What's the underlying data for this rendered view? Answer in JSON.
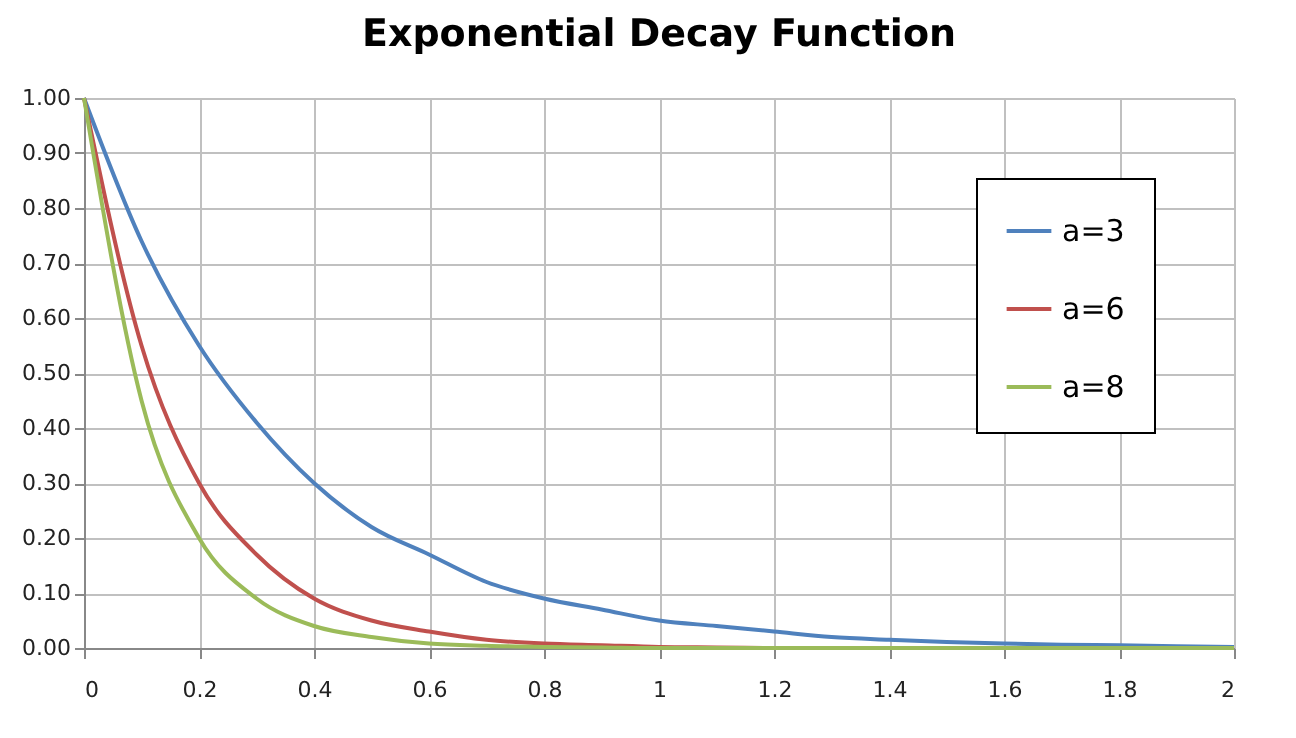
{
  "chart_data": {
    "type": "line",
    "title": "Exponential Decay Function",
    "x": [
      0,
      0.1,
      0.2,
      0.3,
      0.4,
      0.5,
      0.6,
      0.7,
      0.8,
      0.9,
      1,
      1.1,
      1.2,
      1.3,
      1.4,
      1.5,
      1.6,
      1.7,
      1.8,
      1.9,
      2
    ],
    "series": [
      {
        "name": "a=3",
        "color": "#4f81bd",
        "values": [
          1,
          0.74,
          0.55,
          0.41,
          0.3,
          0.22,
          0.17,
          0.12,
          0.09,
          0.07,
          0.05,
          0.04,
          0.03,
          0.02,
          0.015,
          0.011,
          0.008,
          0.006,
          0.005,
          0.003,
          0.002
        ]
      },
      {
        "name": "a=6",
        "color": "#c0504d",
        "values": [
          1,
          0.55,
          0.3,
          0.17,
          0.09,
          0.05,
          0.03,
          0.015,
          0.008,
          0.005,
          0.002,
          0.001,
          0,
          null,
          null,
          null,
          null,
          null,
          null,
          null,
          null
        ]
      },
      {
        "name": "a=8",
        "color": "#9bbb59",
        "values": [
          1,
          0.45,
          0.2,
          0.09,
          0.04,
          0.02,
          0.008,
          0.004,
          0.002,
          0.001,
          0,
          0,
          0,
          0,
          0,
          0,
          0,
          0,
          0,
          0,
          0
        ]
      }
    ],
    "xlim": [
      0,
      2
    ],
    "xticks": [
      0,
      0.2,
      0.4,
      0.6,
      0.8,
      1,
      1.2,
      1.4,
      1.6,
      1.8,
      2
    ],
    "ylim": [
      0,
      1
    ],
    "yticks": [
      {
        "value": 0,
        "label": "0.00"
      },
      {
        "value": 0.1,
        "label": "0.10"
      },
      {
        "value": 0.2,
        "label": "0.20"
      },
      {
        "value": 0.3,
        "label": "0.30"
      },
      {
        "value": 0.4,
        "label": "0.40"
      },
      {
        "value": 0.5,
        "label": "0.50"
      },
      {
        "value": 0.6,
        "label": "0.60"
      },
      {
        "value": 0.7,
        "label": "0.70"
      },
      {
        "value": 0.8,
        "label": "0.80"
      },
      {
        "value": 0.9,
        "label": "0.90"
      },
      {
        "value": 1,
        "label": "1.00"
      }
    ],
    "grid": true,
    "legend": "top right",
    "marker": "none",
    "line_style": "solid"
  }
}
